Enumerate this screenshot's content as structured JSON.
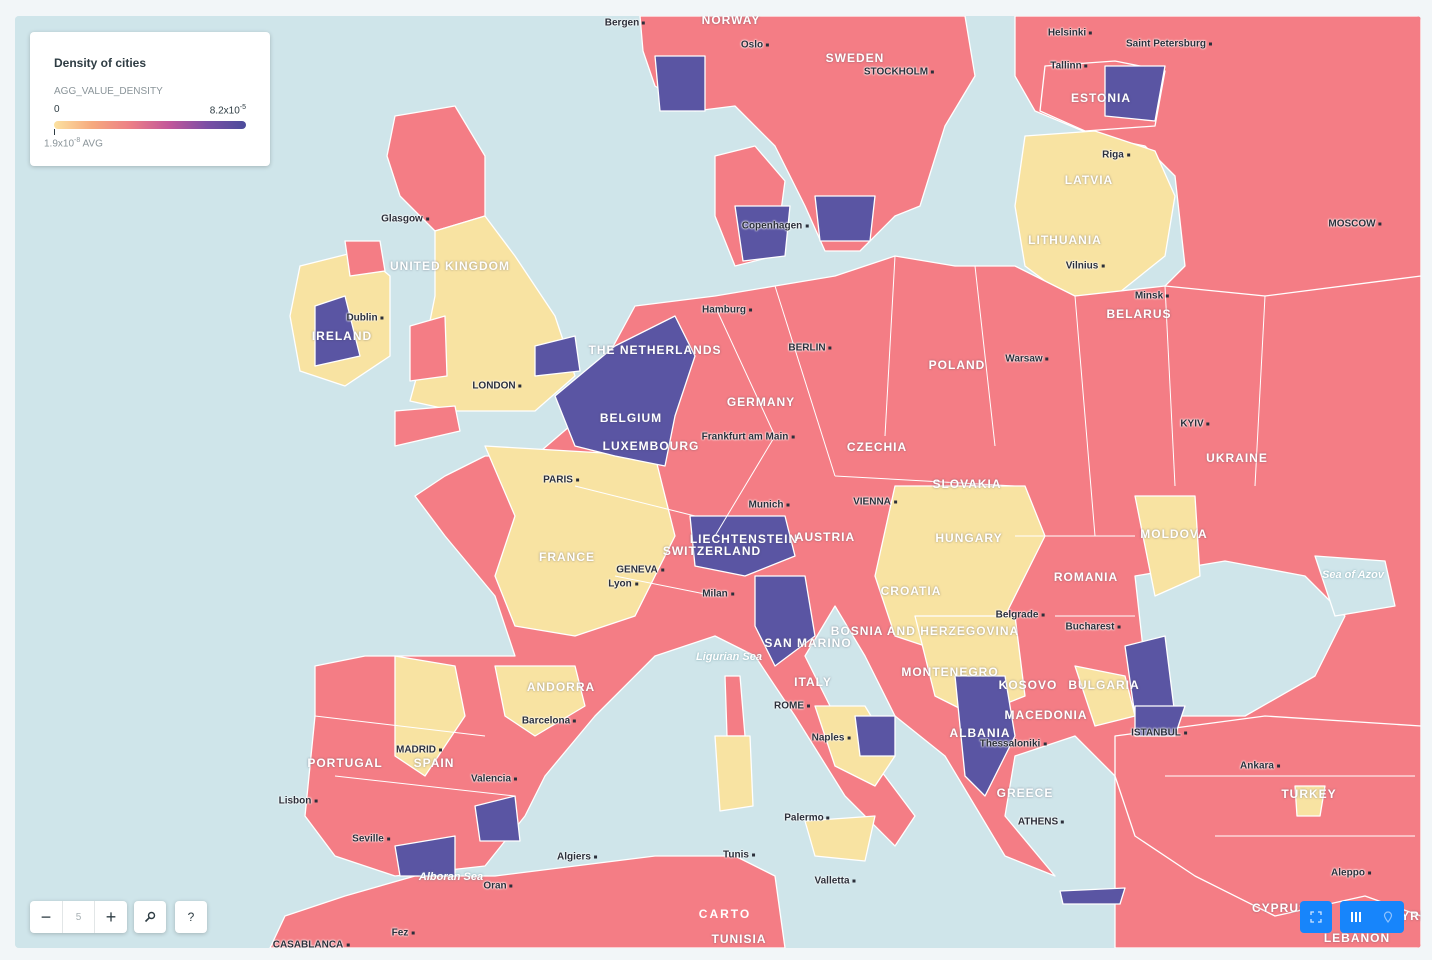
{
  "legend": {
    "title": "Density of cities",
    "field": "AGG_VALUE_DENSITY",
    "min": "0",
    "max_base": "8.2x10",
    "max_exp": "-5",
    "avg_base": "1.9x10",
    "avg_exp": "-8",
    "avg_suffix": "AVG",
    "colors": {
      "low": "#f8e3a2",
      "mid": "#f47d85",
      "high": "#5a55a3",
      "water": "#cfe5ea"
    }
  },
  "controls": {
    "zoom_level": "5",
    "zoom_out": "−",
    "zoom_in": "+",
    "search_icon": "search-icon",
    "help": "?"
  },
  "labels": {
    "countries": [
      "NORWAY",
      "SWEDEN",
      "ESTONIA",
      "LATVIA",
      "LITHUANIA",
      "UNITED KINGDOM",
      "IRELAND",
      "THE NETHERLANDS",
      "BELGIUM",
      "LUXEMBOURG",
      "GERMANY",
      "POLAND",
      "BELARUS",
      "UKRAINE",
      "CZECHIA",
      "SLOVAKIA",
      "FRANCE",
      "SWITZERLAND",
      "LIECHTENSTEIN",
      "AUSTRIA",
      "HUNGARY",
      "MOLDOVA",
      "ROMANIA",
      "CROATIA",
      "BOSNIA AND HERZEGOVINA",
      "SAN MARINO",
      "MONTENEGRO",
      "KOSOVO",
      "BULGARIA",
      "ITALY",
      "ANDORRA",
      "PORTUGAL",
      "SPAIN",
      "MACEDONIA",
      "ALBANIA",
      "GREECE",
      "TURKEY",
      "CYPRUS",
      "TUNISIA",
      "LEBANON",
      "SYRIA"
    ],
    "cities": [
      "Bergen",
      "Oslo",
      "STOCKHOLM",
      "Helsinki",
      "Saint Petersburg",
      "Tallinn",
      "Riga",
      "Vilnius",
      "Minsk",
      "MOSCOW",
      "Copenhagen",
      "Glasgow",
      "Dublin",
      "LONDON",
      "Hamburg",
      "BERLIN",
      "Warsaw",
      "KYIV",
      "Frankfurt am Main",
      "PARIS",
      "Munich",
      "VIENNA",
      "GENEVA",
      "Lyon",
      "Milan",
      "Belgrade",
      "Bucharest",
      "ROME",
      "Naples",
      "Barcelona",
      "MADRID",
      "Valencia",
      "Lisbon",
      "Seville",
      "Thessaloniki",
      "ATHENS",
      "ISTANBUL",
      "Ankara",
      "Palermo",
      "Valletta",
      "Algiers",
      "Oran",
      "Tunis",
      "CASABLANCA",
      "Fez",
      "Aleppo"
    ],
    "seas": [
      "Ligurian Sea",
      "Alboran Sea",
      "Sea of Azov"
    ],
    "watermark": "CARTO"
  }
}
